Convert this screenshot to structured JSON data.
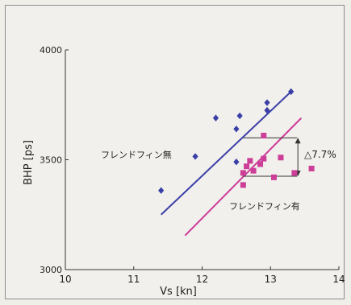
{
  "chart_data": {
    "type": "scatter",
    "xlabel": "Vs [kn]",
    "ylabel": "BHP [ps]",
    "xlim": [
      10,
      14
    ],
    "ylim": [
      3000,
      4000
    ],
    "x_ticks": [
      10,
      11,
      12,
      13,
      14
    ],
    "y_ticks": [
      3000,
      3500,
      4000
    ],
    "grid": false,
    "series": [
      {
        "name": "フレンドフィン無",
        "marker": "diamond",
        "color": "#3a3fa6",
        "points": [
          {
            "x": 11.4,
            "y": 3360
          },
          {
            "x": 11.9,
            "y": 3515
          },
          {
            "x": 12.2,
            "y": 3690
          },
          {
            "x": 12.5,
            "y": 3640
          },
          {
            "x": 12.55,
            "y": 3700
          },
          {
            "x": 12.95,
            "y": 3725
          },
          {
            "x": 12.95,
            "y": 3760
          },
          {
            "x": 13.3,
            "y": 3810
          },
          {
            "x": 12.5,
            "y": 3490
          }
        ],
        "fit": {
          "x": [
            11.4,
            13.3
          ],
          "y": [
            3250,
            3810
          ]
        }
      },
      {
        "name": "フレンドフィン有",
        "marker": "square",
        "color": "#cc3e98",
        "points": [
          {
            "x": 12.6,
            "y": 3385
          },
          {
            "x": 12.6,
            "y": 3440
          },
          {
            "x": 12.65,
            "y": 3470
          },
          {
            "x": 12.7,
            "y": 3495
          },
          {
            "x": 12.75,
            "y": 3450
          },
          {
            "x": 12.85,
            "y": 3480
          },
          {
            "x": 12.9,
            "y": 3505
          },
          {
            "x": 12.9,
            "y": 3610
          },
          {
            "x": 13.05,
            "y": 3420
          },
          {
            "x": 13.15,
            "y": 3510
          },
          {
            "x": 13.35,
            "y": 3440
          },
          {
            "x": 13.6,
            "y": 3460
          }
        ],
        "fit": {
          "x": [
            11.75,
            13.45
          ],
          "y": [
            3155,
            3690
          ]
        }
      }
    ],
    "annotation": {
      "text": "△7.7%",
      "x": 13.4,
      "y_top": 3600,
      "y_bottom": 3425
    }
  }
}
